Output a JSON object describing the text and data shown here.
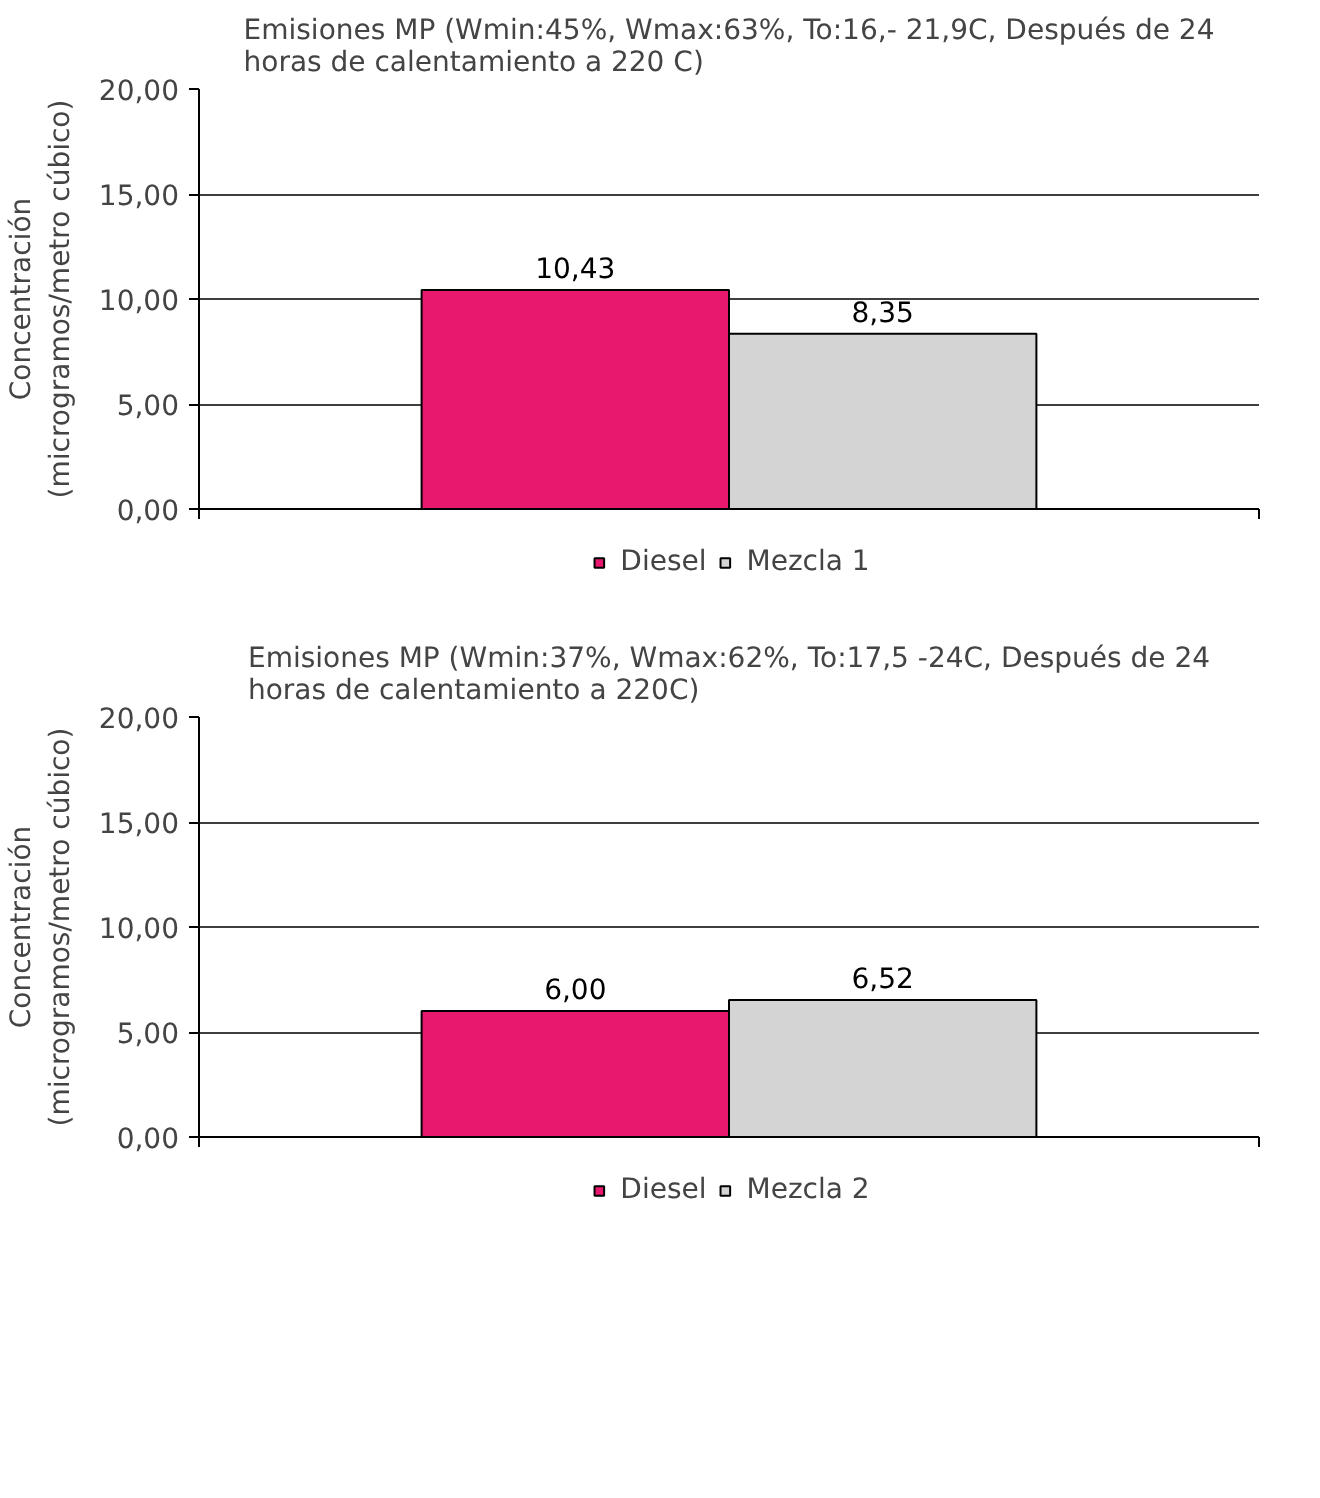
{
  "chart_data": [
    {
      "type": "bar",
      "title": "Emisiones MP (Wmin:45%, Wmax:63%, To:16,- 21,9C, Después de 24 horas de calentamiento a 220 C)",
      "ylabel": "Concentración\n(microgramos/metro cúbico)",
      "categories": [
        null
      ],
      "series": [
        {
          "name": "Diesel",
          "color": "#e8186f",
          "values": [
            10.43
          ],
          "value_labels": [
            "10,43"
          ]
        },
        {
          "name": "Mezcla 1",
          "color": "#d4d4d4",
          "values": [
            8.35
          ],
          "value_labels": [
            "8,35"
          ]
        }
      ],
      "ylim": [
        0,
        20
      ],
      "yticks": [
        {
          "value": 0,
          "label": "0,00"
        },
        {
          "value": 5,
          "label": "5,00"
        },
        {
          "value": 10,
          "label": "10,00"
        },
        {
          "value": 15,
          "label": "15,00"
        },
        {
          "value": 20,
          "label": "20,00"
        }
      ],
      "grid": "y",
      "legend": "bottom",
      "tick_labels": "y"
    },
    {
      "type": "bar",
      "title": "Emisiones MP (Wmin:37%, Wmax:62%, To:17,5 -24C, Después de 24 horas de calentamiento a 220C)",
      "ylabel": "Concentración\n(microgramos/metro cúbico)",
      "categories": [
        null
      ],
      "series": [
        {
          "name": "Diesel",
          "color": "#e8186f",
          "values": [
            6.0
          ],
          "value_labels": [
            "6,00"
          ]
        },
        {
          "name": "Mezcla 2",
          "color": "#d4d4d4",
          "values": [
            6.52
          ],
          "value_labels": [
            "6,52"
          ]
        }
      ],
      "ylim": [
        0,
        20
      ],
      "yticks": [
        {
          "value": 0,
          "label": "0,00"
        },
        {
          "value": 5,
          "label": "5,00"
        },
        {
          "value": 10,
          "label": "10,00"
        },
        {
          "value": 15,
          "label": "15,00"
        },
        {
          "value": 20,
          "label": "20,00"
        }
      ],
      "grid": "y",
      "legend": "bottom",
      "tick_labels": "y"
    }
  ]
}
